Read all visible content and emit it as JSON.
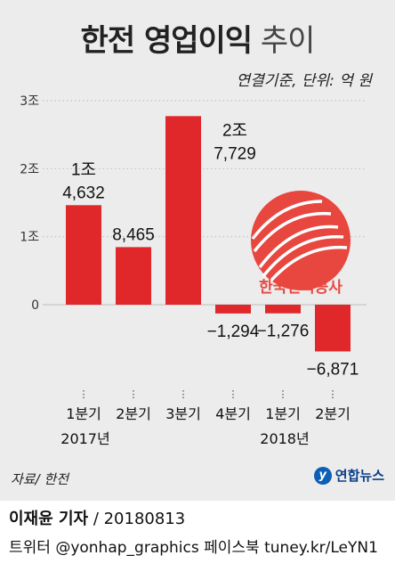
{
  "header": {
    "title_bold": "한전 영업이익",
    "title_light": "추이",
    "unit": "연결기준, 단위: 억 원"
  },
  "footer": {
    "source": "자료/ 한전",
    "agency": "연합뉴스",
    "credit_name": "이재윤 기자",
    "credit_date": "/ 20180813",
    "social": "트위터 @yonhap_graphics  페이스북 tuney.kr/LeYN1"
  },
  "watermark": {
    "name": "한국전력공사",
    "brand_color": "#e8473f"
  },
  "chart_data": {
    "type": "bar",
    "categories": [
      "1분기",
      "2분기",
      "3분기",
      "4분기",
      "1분기",
      "2분기"
    ],
    "year_labels": [
      {
        "index": 0,
        "text": "2017년"
      },
      {
        "index": 4,
        "text": "2018년"
      }
    ],
    "values": [
      14632,
      8465,
      27729,
      -1294,
      -1276,
      -6871
    ],
    "value_labels": [
      [
        "1조",
        "4,632"
      ],
      [
        "8,465"
      ],
      [
        "2조",
        "7,729"
      ],
      [
        "-1,294"
      ],
      [
        "-1,276"
      ],
      [
        "-6,871"
      ]
    ],
    "yticks": [
      {
        "v": 30000,
        "label": "3조"
      },
      {
        "v": 20000,
        "label": "2조"
      },
      {
        "v": 10000,
        "label": "1조"
      },
      {
        "v": 0,
        "label": "0"
      }
    ],
    "ylim": [
      -9000,
      30000
    ],
    "bar_color": "#e0282a",
    "grid": true
  }
}
